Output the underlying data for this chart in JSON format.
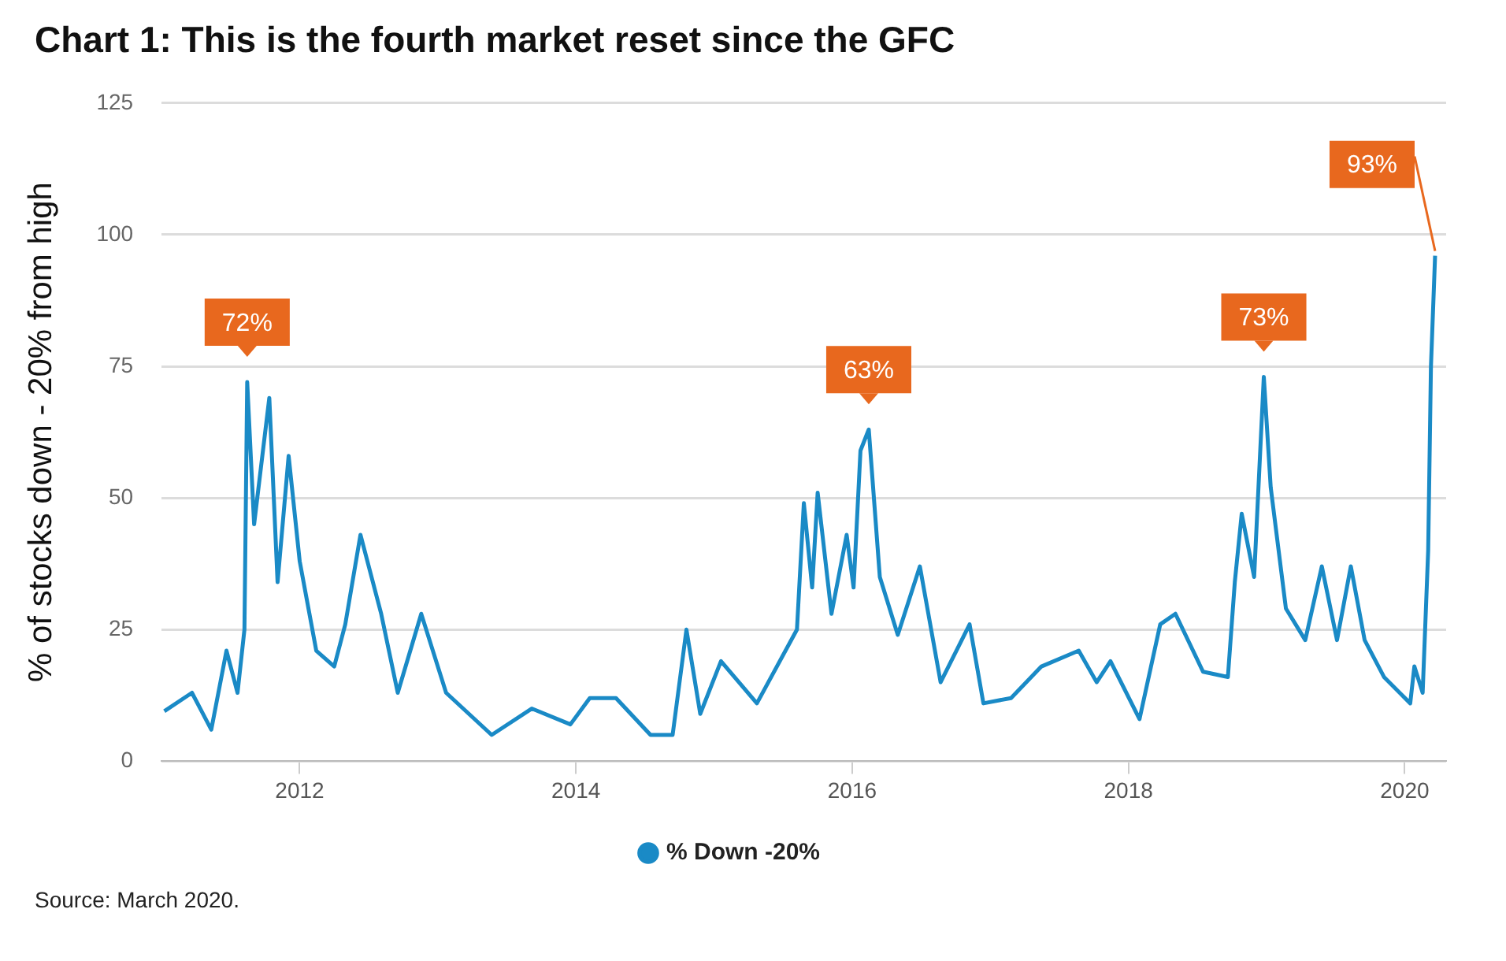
{
  "chart_data": {
    "type": "line",
    "title": "Chart 1: This is the fourth market reset since the GFC",
    "ylabel": "% of stocks down - 20% from high",
    "xlim": [
      2011,
      2020.3
    ],
    "xticks": [
      2012,
      2014,
      2016,
      2018,
      2020
    ],
    "ylim": [
      0,
      125
    ],
    "yticks": [
      0,
      25,
      50,
      75,
      100,
      125
    ],
    "grid": "y",
    "legend": "bottom",
    "series": [
      {
        "name": "% Down -20%",
        "color": "#1a8ac6",
        "x": [
          2011.02,
          2011.22,
          2011.36,
          2011.47,
          2011.55,
          2011.6,
          2011.62,
          2011.67,
          2011.78,
          2011.84,
          2011.92,
          2012.0,
          2012.12,
          2012.25,
          2012.33,
          2012.44,
          2012.59,
          2012.71,
          2012.88,
          2013.06,
          2013.39,
          2013.68,
          2013.96,
          2014.1,
          2014.29,
          2014.54,
          2014.7,
          2014.8,
          2014.9,
          2015.05,
          2015.31,
          2015.6,
          2015.65,
          2015.71,
          2015.75,
          2015.85,
          2015.96,
          2016.01,
          2016.06,
          2016.12,
          2016.2,
          2016.33,
          2016.49,
          2016.64,
          2016.85,
          2016.95,
          2017.15,
          2017.37,
          2017.64,
          2017.77,
          2017.87,
          2018.08,
          2018.23,
          2018.34,
          2018.54,
          2018.72,
          2018.77,
          2018.82,
          2018.91,
          2018.98,
          2019.03,
          2019.14,
          2019.28,
          2019.4,
          2019.51,
          2019.61,
          2019.71,
          2019.85,
          2020.04,
          2020.07,
          2020.13,
          2020.17,
          2020.19,
          2020.22
        ],
        "values": [
          9.5,
          13,
          6,
          21,
          13,
          25,
          72,
          45,
          69,
          34,
          58,
          38,
          21,
          18,
          26,
          43,
          28,
          13,
          28,
          13,
          5,
          10,
          7,
          12,
          12,
          5,
          5,
          25,
          9,
          19,
          11,
          25,
          49,
          33,
          51,
          28,
          43,
          33,
          59,
          63,
          35,
          24,
          37,
          15,
          26,
          11,
          12,
          18,
          21,
          15,
          19,
          8,
          26,
          28,
          17,
          16,
          34,
          47,
          35,
          73,
          52,
          29,
          23,
          37,
          23,
          37,
          23,
          16,
          11,
          18,
          13,
          40,
          75,
          96
        ]
      }
    ],
    "annotations": [
      {
        "text": "72%",
        "x": 2011.62,
        "y": 72
      },
      {
        "text": "63%",
        "x": 2016.12,
        "y": 63
      },
      {
        "text": "73%",
        "x": 2018.98,
        "y": 73
      },
      {
        "text": "93%",
        "x": 2020.22,
        "y": 96
      },
      "Source: March 2020."
    ]
  }
}
